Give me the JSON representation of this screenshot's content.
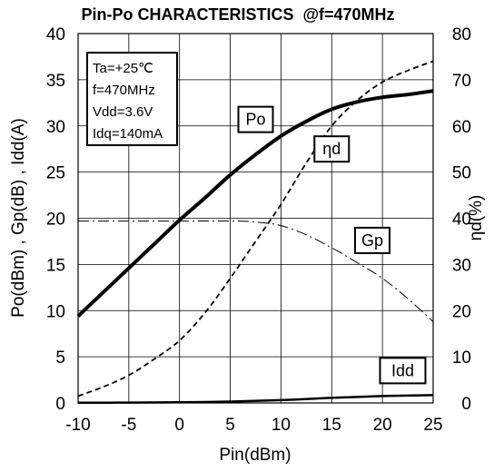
{
  "chart_data": {
    "type": "line",
    "title": "Pin-Po CHARACTERISTICS  @f=470MHz",
    "xlabel": "Pin(dBm)",
    "ylabel": "Po(dBm) , Gp(dB) , Idd(A)",
    "y2label": "ηd(%)",
    "xlim": [
      -10,
      25
    ],
    "ylim": [
      0,
      40
    ],
    "y2lim": [
      0,
      80
    ],
    "xticks": [
      -10,
      -5,
      0,
      5,
      10,
      15,
      20,
      25
    ],
    "yticks": [
      0,
      5,
      10,
      15,
      20,
      25,
      30,
      35,
      40
    ],
    "y2ticks": [
      0,
      10,
      20,
      30,
      40,
      50,
      60,
      70,
      80
    ],
    "grid": true,
    "conditions": [
      "Ta=+25℃",
      "f=470MHz",
      "Vdd=3.6V",
      "Idq=140mA"
    ],
    "series": [
      {
        "name": "Po",
        "axis": "left",
        "style": "solid-thick",
        "label_at": [
          7.5,
          30.7
        ],
        "points": [
          [
            -10,
            9.4
          ],
          [
            -7.5,
            12.0
          ],
          [
            -5,
            14.6
          ],
          [
            -2.5,
            17.2
          ],
          [
            0,
            19.8
          ],
          [
            2.5,
            22.2
          ],
          [
            5,
            24.7
          ],
          [
            7.5,
            26.9
          ],
          [
            10,
            28.9
          ],
          [
            12.5,
            30.5
          ],
          [
            15,
            31.8
          ],
          [
            17.5,
            32.6
          ],
          [
            20,
            33.1
          ],
          [
            22.5,
            33.4
          ],
          [
            25,
            33.8
          ]
        ]
      },
      {
        "name": "ηd",
        "axis": "right",
        "style": "dashed",
        "label_at": [
          15,
          55
        ],
        "points": [
          [
            -10,
            1.5
          ],
          [
            -7.5,
            3.5
          ],
          [
            -5,
            6.0
          ],
          [
            -2.5,
            9.5
          ],
          [
            0,
            13.5
          ],
          [
            2.5,
            19.5
          ],
          [
            5,
            27.0
          ],
          [
            7.5,
            35.0
          ],
          [
            10,
            43.0
          ],
          [
            12.5,
            52.0
          ],
          [
            15,
            60.0
          ],
          [
            17.5,
            65.5
          ],
          [
            20,
            69.5
          ],
          [
            22.5,
            72.0
          ],
          [
            25,
            74.0
          ]
        ]
      },
      {
        "name": "Gp",
        "axis": "left",
        "style": "dashdot",
        "label_at": [
          19,
          17.6
        ],
        "points": [
          [
            -10,
            19.7
          ],
          [
            -5,
            19.7
          ],
          [
            0,
            19.7
          ],
          [
            5,
            19.7
          ],
          [
            7.5,
            19.6
          ],
          [
            10,
            19.2
          ],
          [
            12.5,
            18.2
          ],
          [
            15,
            16.8
          ],
          [
            17.5,
            15.2
          ],
          [
            20,
            13.5
          ],
          [
            22.5,
            11.3
          ],
          [
            25,
            8.8
          ]
        ]
      },
      {
        "name": "Idd",
        "axis": "left",
        "style": "solid",
        "label_at": [
          22,
          3.5
        ],
        "points": [
          [
            -10,
            0.02
          ],
          [
            -5,
            0.04
          ],
          [
            0,
            0.07
          ],
          [
            5,
            0.15
          ],
          [
            10,
            0.3
          ],
          [
            15,
            0.55
          ],
          [
            20,
            0.75
          ],
          [
            25,
            0.85
          ]
        ]
      }
    ]
  }
}
